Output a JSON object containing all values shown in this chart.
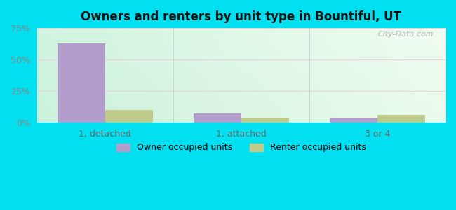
{
  "title": "Owners and renters by unit type in Bountiful, UT",
  "categories": [
    "1, detached",
    "1, attached",
    "3 or 4"
  ],
  "owner_values": [
    63,
    7,
    4
  ],
  "renter_values": [
    10,
    4,
    6
  ],
  "owner_color": "#b39dcc",
  "renter_color": "#bfc98a",
  "ylim": [
    0,
    75
  ],
  "yticks": [
    0,
    25,
    50,
    75
  ],
  "ytick_labels": [
    "0%",
    "25%",
    "50%",
    "75%"
  ],
  "bar_width": 0.35,
  "outer_bg": "#00e0f0",
  "plot_bg_topleft": [
    0.82,
    0.96,
    0.88,
    1.0
  ],
  "plot_bg_topright": [
    0.94,
    0.99,
    0.94,
    1.0
  ],
  "plot_bg_bottomleft": [
    0.8,
    0.95,
    0.86,
    1.0
  ],
  "plot_bg_bottomright": [
    0.92,
    0.98,
    0.92,
    1.0
  ],
  "legend_owner": "Owner occupied units",
  "legend_renter": "Renter occupied units",
  "watermark": "City-Data.com",
  "grid_color": "#e8d0e0",
  "tick_color": "#888888",
  "xlabel_color": "#666666"
}
